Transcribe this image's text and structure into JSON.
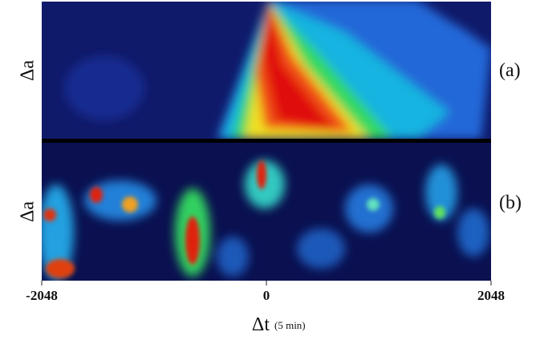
{
  "chart_data": {
    "type": "heatmap",
    "panels": [
      {
        "ylabel": "Δa",
        "label": "(a)"
      },
      {
        "ylabel": "Δa",
        "label": "(b)"
      }
    ],
    "xlabel": "Δt",
    "xlabel_unit": "(5 min)",
    "xlim": [
      -2048,
      2048
    ],
    "xticks": [
      -2048,
      0,
      2048
    ]
  }
}
